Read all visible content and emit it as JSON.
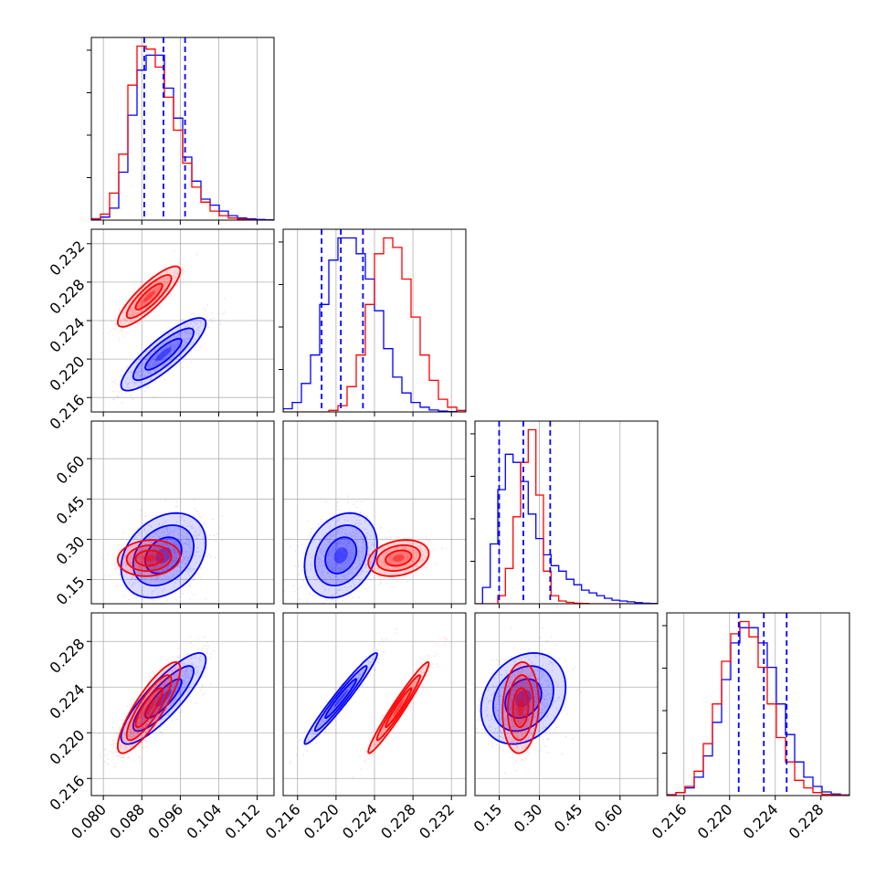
{
  "chart_data": {
    "type": "corner",
    "parameters": [
      {
        "id": "p1",
        "ticks": [
          "0.080",
          "0.088",
          "0.096",
          "0.104",
          "0.112"
        ],
        "tick_values": [
          0.08,
          0.088,
          0.096,
          0.104,
          0.112
        ],
        "range": [
          0.0775,
          0.1155
        ]
      },
      {
        "id": "p2",
        "ticks": [
          "0.216",
          "0.220",
          "0.224",
          "0.228",
          "0.232"
        ],
        "tick_values": [
          0.216,
          0.22,
          0.224,
          0.228,
          0.232
        ],
        "range": [
          0.2145,
          0.2335
        ]
      },
      {
        "id": "p3",
        "ticks": [
          "0.15",
          "0.30",
          "0.45",
          "0.60"
        ],
        "tick_values": [
          0.15,
          0.3,
          0.45,
          0.6
        ],
        "range": [
          0.06,
          0.74
        ]
      },
      {
        "id": "p4",
        "ticks": [
          "0.216",
          "0.220",
          "0.224",
          "0.228"
        ],
        "tick_values": [
          0.216,
          0.22,
          0.224,
          0.228
        ],
        "range": [
          0.2145,
          0.2305
        ]
      }
    ],
    "series": [
      {
        "name": "",
        "color": "#0000ff",
        "mean": [
          0.0925,
          0.2205,
          0.24,
          0.223
        ],
        "sd": [
          0.0042,
          0.0018,
          0.075,
          0.0019
        ],
        "corr_with_p1": [
          1,
          0.85,
          0.3,
          0.85
        ],
        "corr_p2_p4": 0.97,
        "corr_p3_p4": 0.25,
        "quantiles": [
          [
            0.0885,
            0.0925,
            0.097
          ],
          [
            0.2185,
            0.2205,
            0.2228
          ],
          [
            0.15,
            0.24,
            0.34
          ],
          [
            0.2208,
            0.223,
            0.225
          ]
        ],
        "histograms": [
          [
            0.4,
            1,
            4,
            16,
            35,
            50,
            55,
            55,
            44,
            34,
            21,
            13,
            7,
            5,
            3,
            1.5,
            0.7,
            0.4,
            0.2,
            0.1
          ],
          [
            1,
            3,
            9,
            18,
            34,
            48,
            55,
            55,
            50,
            42,
            32,
            20,
            11,
            6,
            3,
            1.5,
            0.6,
            0.3,
            0.1,
            0
          ],
          [
            0,
            6,
            22,
            42,
            55,
            52,
            45,
            33,
            24,
            18,
            14,
            12,
            9,
            7,
            5,
            4,
            3,
            2,
            1.3,
            1,
            0.7,
            0.4,
            0.2,
            0.1
          ],
          [
            0.3,
            1,
            2.5,
            6,
            13,
            24,
            38,
            50,
            55,
            55,
            50,
            42,
            30,
            20,
            11,
            6,
            3,
            1.2,
            0.5,
            0.2
          ]
        ]
      },
      {
        "name": "",
        "color": "#ff0000",
        "mean": [
          0.0895,
          0.2265,
          0.23,
          0.2222
        ],
        "sd": [
          0.0031,
          0.0015,
          0.032,
          0.0019
        ],
        "corr_with_p1": [
          1,
          0.85,
          0.1,
          0.85
        ],
        "corr_p2_p4": 0.97,
        "corr_p3_p4": 0.1,
        "histograms": [
          [
            0.5,
            2,
            9,
            22,
            45,
            58,
            57,
            51,
            41,
            30,
            19,
            11,
            6,
            3,
            1.5,
            0.7,
            0.3,
            0.1,
            0,
            0
          ],
          [
            0,
            0,
            0,
            0,
            0,
            0.5,
            2,
            8,
            18,
            34,
            50,
            55,
            52,
            42,
            30,
            18,
            10,
            4,
            1.5,
            0.5
          ],
          [
            0,
            0,
            0,
            3,
            13,
            32,
            52,
            64,
            40,
            12,
            3,
            1,
            0.5,
            0.2,
            0.1,
            0,
            0,
            0,
            0,
            0,
            0,
            0,
            0,
            0
          ],
          [
            0.2,
            1,
            3,
            8,
            17,
            30,
            44,
            53,
            57,
            52,
            42,
            30,
            19,
            11,
            5,
            2.5,
            1,
            0.4,
            0.2,
            0.1
          ]
        ]
      }
    ],
    "quantile_lines_color": "#0000ff",
    "grid": true,
    "legend": "none"
  }
}
